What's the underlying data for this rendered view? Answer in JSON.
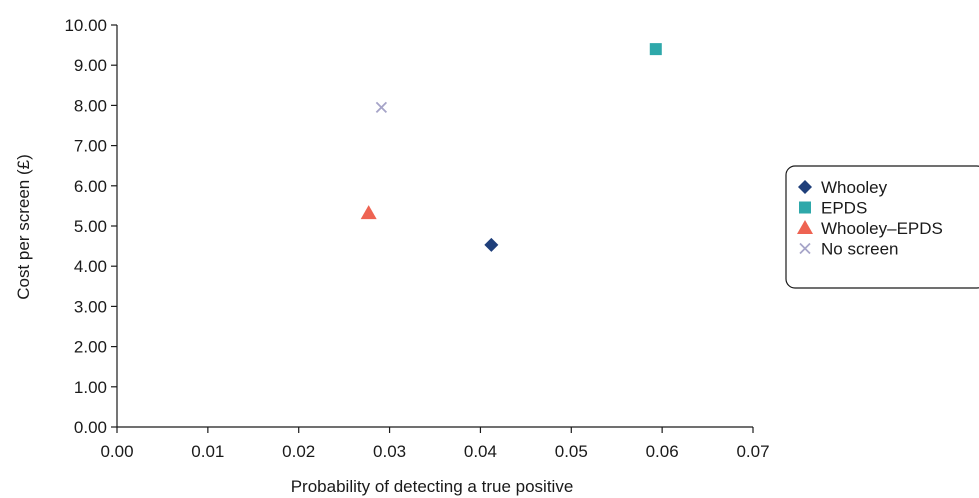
{
  "chart_data": {
    "type": "scatter",
    "title": "",
    "xlabel": "Probability of detecting a true positive",
    "ylabel": "Cost per screen (£)",
    "xlim": [
      0,
      0.07
    ],
    "ylim": [
      0,
      10
    ],
    "x_ticks": [
      "0.00",
      "0.01",
      "0.02",
      "0.03",
      "0.04",
      "0.05",
      "0.06",
      "0.07"
    ],
    "y_ticks": [
      "0.00",
      "1.00",
      "2.00",
      "3.00",
      "4.00",
      "5.00",
      "6.00",
      "7.00",
      "8.00",
      "9.00",
      "10.00"
    ],
    "grid": false,
    "legend_position": "right",
    "series": [
      {
        "name": "Whooley",
        "marker": "diamond",
        "color": "#1f3f7a",
        "x": [
          0.0412
        ],
        "y": [
          4.53
        ]
      },
      {
        "name": "EPDS",
        "marker": "square",
        "color": "#2ea8aa",
        "x": [
          0.0593
        ],
        "y": [
          9.4
        ]
      },
      {
        "name": "Whooley–EPDS",
        "marker": "triangle",
        "color": "#ee6352",
        "x": [
          0.0277
        ],
        "y": [
          5.32
        ]
      },
      {
        "name": "No screen",
        "marker": "x",
        "color": "#a6a4c8",
        "x": [
          0.0291
        ],
        "y": [
          7.95
        ]
      }
    ]
  }
}
